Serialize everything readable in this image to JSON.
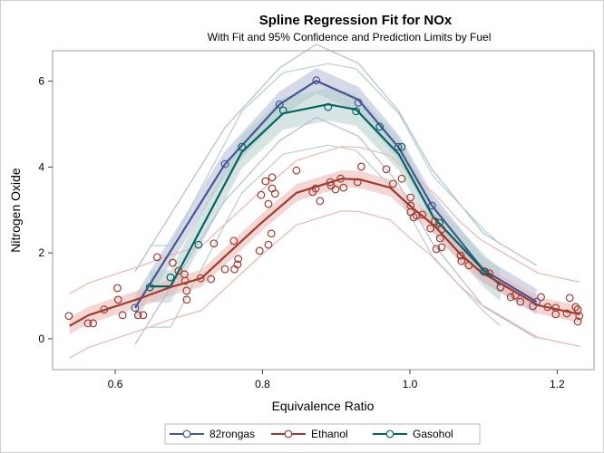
{
  "chart_data": {
    "type": "line",
    "title": "Spline Regression Fit for NOx",
    "subtitle": "With Fit and 95% Confidence and Prediction Limits by Fuel",
    "xlabel": "Equivalence Ratio",
    "ylabel": "Nitrogen Oxide",
    "xlim": [
      0.515,
      1.25
    ],
    "ylim": [
      -0.72,
      6.71
    ],
    "xticks": [
      "0.6",
      "0.8",
      "1.0",
      "1.2"
    ],
    "xtick_values": [
      0.6,
      0.8,
      1.0,
      1.2
    ],
    "yticks": [
      "0",
      "2",
      "4",
      "6"
    ],
    "ytick_values": [
      0,
      2,
      4,
      6
    ],
    "grid": false,
    "legend_position": "bottom",
    "series": [
      {
        "name": "82rongas",
        "color": "#445694",
        "band_color": "#b5bcd6",
        "confidence_halfwidth": 0.3,
        "prediction_halfwidth": 0.85,
        "fit": [
          [
            0.627,
            0.72
          ],
          [
            0.749,
            4.07
          ],
          [
            0.823,
            5.46
          ],
          [
            0.873,
            6.01
          ],
          [
            0.93,
            5.57
          ],
          [
            0.985,
            4.45
          ],
          [
            1.03,
            3.1
          ],
          [
            1.1,
            1.6
          ],
          [
            1.172,
            0.86
          ]
        ],
        "points": [
          [
            0.627,
            0.72
          ],
          [
            0.749,
            4.07
          ],
          [
            0.823,
            5.46
          ],
          [
            0.873,
            6.02
          ],
          [
            0.93,
            5.5
          ],
          [
            0.984,
            4.47
          ],
          [
            1.03,
            3.1
          ],
          [
            1.1,
            1.57
          ],
          [
            1.172,
            0.86
          ]
        ]
      },
      {
        "name": "Ethanol",
        "color": "#A23A2E",
        "band_color": "#eab7b2",
        "confidence_halfwidth": 0.2,
        "prediction_halfwidth": 0.75,
        "fit": [
          [
            0.538,
            0.3
          ],
          [
            0.564,
            0.55
          ],
          [
            0.594,
            0.72
          ],
          [
            0.635,
            0.95
          ],
          [
            0.675,
            1.2
          ],
          [
            0.717,
            1.41
          ],
          [
            0.749,
            1.92
          ],
          [
            0.797,
            2.68
          ],
          [
            0.846,
            3.4
          ],
          [
            0.908,
            3.73
          ],
          [
            0.932,
            3.71
          ],
          [
            0.973,
            3.52
          ],
          [
            1.0,
            3.1
          ],
          [
            1.034,
            2.62
          ],
          [
            1.068,
            1.98
          ],
          [
            1.096,
            1.56
          ],
          [
            1.174,
            0.78
          ],
          [
            1.231,
            0.57
          ]
        ],
        "points": [
          [
            0.537,
            0.53
          ],
          [
            0.563,
            0.36
          ],
          [
            0.57,
            0.36
          ],
          [
            0.585,
            0.68
          ],
          [
            0.603,
            1.18
          ],
          [
            0.604,
            0.91
          ],
          [
            0.61,
            0.55
          ],
          [
            0.631,
            0.55
          ],
          [
            0.638,
            0.55
          ],
          [
            0.657,
            1.9
          ],
          [
            0.678,
            1.77
          ],
          [
            0.686,
            1.58
          ],
          [
            0.694,
            1.5
          ],
          [
            0.695,
            1.35
          ],
          [
            0.697,
            1.12
          ],
          [
            0.697,
            0.91
          ],
          [
            0.716,
            1.41
          ],
          [
            0.73,
            1.39
          ],
          [
            0.734,
            2.22
          ],
          [
            0.749,
            1.62
          ],
          [
            0.761,
            2.28
          ],
          [
            0.762,
            1.62
          ],
          [
            0.766,
            1.73
          ],
          [
            0.767,
            1.86
          ],
          [
            0.796,
            2.05
          ],
          [
            0.808,
            2.19
          ],
          [
            0.812,
            2.45
          ],
          [
            0.798,
            3.35
          ],
          [
            0.804,
            3.67
          ],
          [
            0.813,
            3.76
          ],
          [
            0.813,
            3.5
          ],
          [
            0.817,
            3.38
          ],
          [
            0.808,
            3.14
          ],
          [
            0.846,
            3.92
          ],
          [
            0.868,
            3.42
          ],
          [
            0.872,
            3.5
          ],
          [
            0.878,
            3.21
          ],
          [
            0.892,
            3.65
          ],
          [
            0.893,
            3.57
          ],
          [
            0.899,
            3.48
          ],
          [
            0.906,
            3.73
          ],
          [
            0.91,
            3.52
          ],
          [
            0.929,
            3.65
          ],
          [
            0.934,
            4.01
          ],
          [
            0.968,
            3.95
          ],
          [
            0.977,
            3.61
          ],
          [
            0.989,
            3.73
          ],
          [
            1.001,
            3.29
          ],
          [
            1.001,
            3.1
          ],
          [
            1.001,
            2.95
          ],
          [
            1.005,
            2.83
          ],
          [
            1.009,
            2.87
          ],
          [
            1.017,
            2.89
          ],
          [
            1.028,
            2.57
          ],
          [
            1.034,
            2.74
          ],
          [
            1.043,
            2.55
          ],
          [
            1.041,
            2.34
          ],
          [
            1.036,
            2.09
          ],
          [
            1.043,
            2.13
          ],
          [
            1.069,
            1.94
          ],
          [
            1.07,
            1.81
          ],
          [
            1.08,
            1.71
          ],
          [
            1.108,
            1.52
          ],
          [
            1.123,
            1.2
          ],
          [
            1.137,
            0.97
          ],
          [
            1.143,
            1.01
          ],
          [
            1.15,
            0.86
          ],
          [
            1.167,
            0.76
          ],
          [
            1.178,
            0.97
          ],
          [
            1.187,
            0.74
          ],
          [
            1.198,
            0.57
          ],
          [
            1.198,
            0.72
          ],
          [
            1.213,
            0.59
          ],
          [
            1.217,
            0.95
          ],
          [
            1.225,
            0.74
          ],
          [
            1.228,
            0.68
          ],
          [
            1.23,
            0.53
          ],
          [
            1.228,
            0.4
          ]
        ]
      },
      {
        "name": "Gasohol",
        "color": "#01665E",
        "band_color": "#b4d0cc",
        "confidence_halfwidth": 0.38,
        "prediction_halfwidth": 0.95,
        "fit": [
          [
            0.647,
            1.22
          ],
          [
            0.675,
            1.22
          ],
          [
            0.772,
            4.35
          ],
          [
            0.828,
            5.25
          ],
          [
            0.889,
            5.46
          ],
          [
            0.927,
            5.34
          ],
          [
            0.985,
            4.3
          ],
          [
            1.032,
            2.83
          ],
          [
            1.102,
            1.56
          ],
          [
            1.123,
            1.25
          ]
        ],
        "points": [
          [
            0.647,
            1.2
          ],
          [
            0.675,
            1.43
          ],
          [
            0.713,
            2.19
          ],
          [
            0.772,
            4.47
          ],
          [
            0.828,
            5.32
          ],
          [
            0.889,
            5.4
          ],
          [
            0.927,
            5.3
          ],
          [
            0.959,
            4.94
          ],
          [
            0.989,
            4.47
          ],
          [
            1.04,
            2.7
          ],
          [
            1.102,
            1.56
          ],
          [
            1.123,
            1.2
          ]
        ]
      }
    ]
  }
}
